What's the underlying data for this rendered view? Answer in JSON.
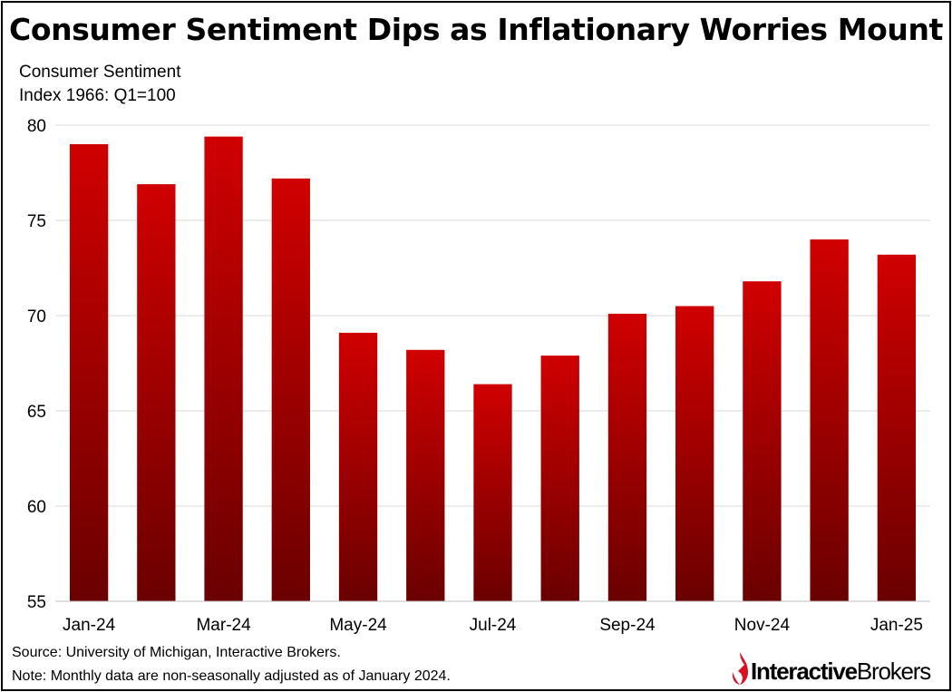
{
  "chart_data": {
    "type": "bar",
    "title": "Consumer Sentiment Dips as Inflationary Worries Mount",
    "ylabel_lines": [
      "Consumer Sentiment",
      "Index 1966: Q1=100"
    ],
    "xlabel": "",
    "categories": [
      "Jan-24",
      "Feb-24",
      "Mar-24",
      "Apr-24",
      "May-24",
      "Jun-24",
      "Jul-24",
      "Aug-24",
      "Sep-24",
      "Oct-24",
      "Nov-24",
      "Dec-24",
      "Jan-25"
    ],
    "tick_labels": [
      "Jan-24",
      "",
      "Mar-24",
      "",
      "May-24",
      "",
      "Jul-24",
      "",
      "Sep-24",
      "",
      "Nov-24",
      "",
      "Jan-25"
    ],
    "values": [
      79.0,
      76.9,
      79.4,
      77.2,
      69.1,
      68.2,
      66.4,
      67.9,
      70.1,
      70.5,
      71.8,
      74.0,
      73.2
    ],
    "ylim": [
      55,
      80
    ],
    "yticks": [
      55,
      60,
      65,
      70,
      75,
      80
    ],
    "grid": true,
    "legend": "none",
    "bar_color_top": "#d00000",
    "bar_color_bottom": "#6a0000",
    "gridline_color": "#d9d9d9"
  },
  "footer": {
    "source": "Source: University of Michigan, Interactive Brokers.",
    "note": "Note: Monthly data are non-seasonally adjusted as of January 2024."
  },
  "brand": {
    "name_part1": "Interactive",
    "name_part2": "Brokers",
    "color": "#d81222"
  }
}
